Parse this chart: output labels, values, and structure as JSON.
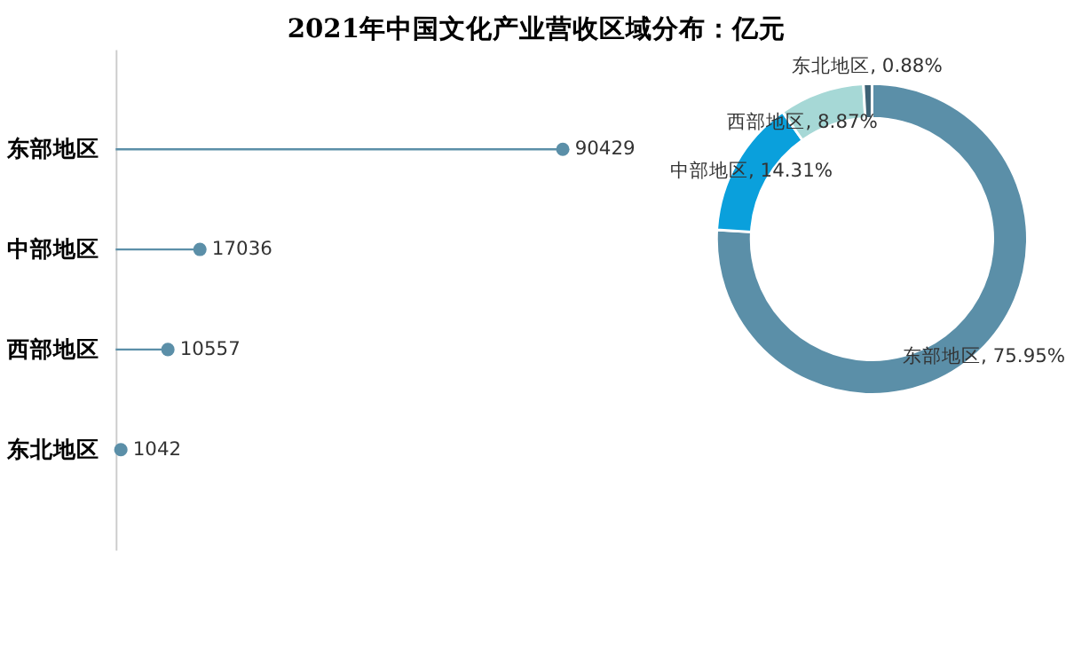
{
  "chart_data": [
    {
      "type": "lollipop",
      "title": "2021年中国文化产业营收区域分布：亿元",
      "orientation": "horizontal",
      "categories": [
        "东部地区",
        "中部地区",
        "西部地区",
        "东北地区"
      ],
      "series": [
        {
          "color": "#5b8fa8",
          "values": [
            90429,
            17036,
            10557,
            1042
          ]
        }
      ],
      "data_labels": true,
      "grid": false,
      "legend": false,
      "tick_labels": "y"
    },
    {
      "type": "donut",
      "categories": [
        "东部地区",
        "中部地区",
        "西部地区",
        "东北地区"
      ],
      "values": [
        75.95,
        14.31,
        8.87,
        0.88
      ],
      "colors": [
        "#5b8fa8",
        "#0aa0dc",
        "#a6d8d6",
        "#3d6275"
      ],
      "value_labels": [
        "75.95%",
        "14.31%",
        "8.87%",
        "0.88%"
      ],
      "legend": false
    }
  ]
}
